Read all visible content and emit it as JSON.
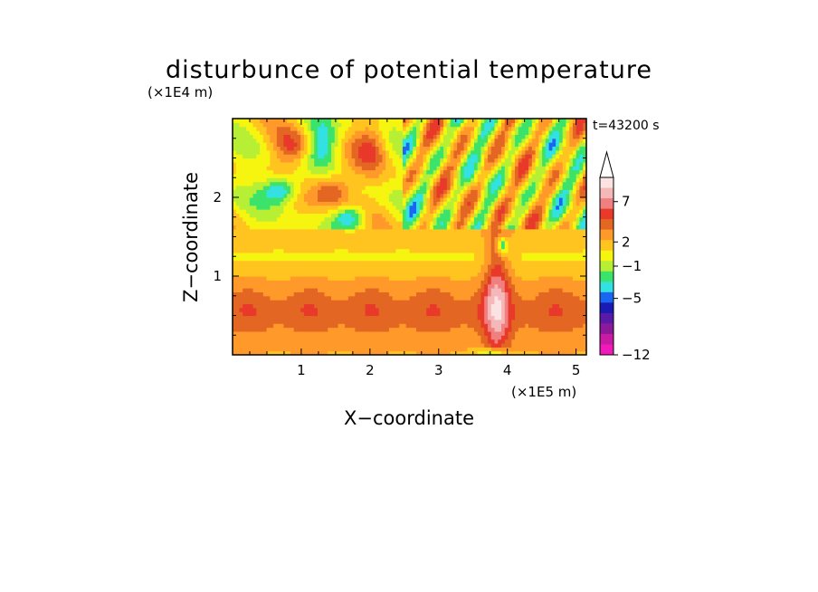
{
  "chart_data": {
    "type": "heatmap",
    "title": "disturbunce of potential temperature",
    "time_label": "t=43200 s",
    "xlabel": "X−coordinate",
    "ylabel": "Z−coordinate",
    "x_unit": "(×1E5 m)",
    "y_unit": "(×1E4 m)",
    "xlim": [
      0,
      5.15
    ],
    "ylim": [
      0,
      3.0
    ],
    "x_ticks": [
      1,
      2,
      3,
      4,
      5
    ],
    "y_ticks": [
      1,
      2
    ],
    "colorbar": {
      "levels": [
        -12,
        -11,
        -10,
        -9,
        -8,
        -7,
        -6,
        -5,
        -4,
        -3,
        -2,
        -1,
        0,
        1,
        2,
        3,
        4,
        5,
        6,
        7,
        8,
        9,
        10
      ],
      "tick_labels": [
        "7",
        "2",
        "−1",
        "−5",
        "−12"
      ],
      "tick_values": [
        7,
        2,
        -1,
        -5,
        -12
      ],
      "colors_high_to_low": [
        "#fbe3e3",
        "#f4b8b8",
        "#f08080",
        "#e8392a",
        "#e36622",
        "#ff9a2a",
        "#ffc41f",
        "#f5f510",
        "#b6ef34",
        "#3ce36a",
        "#33e1e1",
        "#1b66f0",
        "#1a1ab4",
        "#5a1aa8",
        "#8a1a9a",
        "#c81aa2",
        "#f01ab8"
      ],
      "extend_top_color": "#ffffff"
    }
  }
}
